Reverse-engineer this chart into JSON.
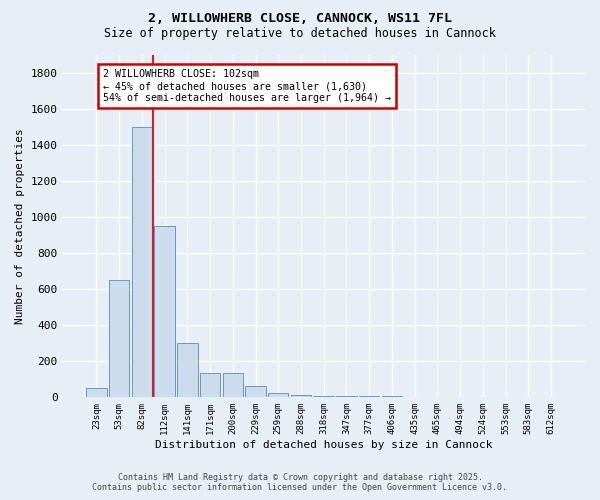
{
  "title1": "2, WILLOWHERB CLOSE, CANNOCK, WS11 7FL",
  "title2": "Size of property relative to detached houses in Cannock",
  "xlabel": "Distribution of detached houses by size in Cannock",
  "ylabel": "Number of detached properties",
  "bar_labels": [
    "23sqm",
    "53sqm",
    "82sqm",
    "112sqm",
    "141sqm",
    "171sqm",
    "200sqm",
    "229sqm",
    "259sqm",
    "288sqm",
    "318sqm",
    "347sqm",
    "377sqm",
    "406sqm",
    "435sqm",
    "465sqm",
    "494sqm",
    "524sqm",
    "553sqm",
    "583sqm",
    "612sqm"
  ],
  "bar_values": [
    50,
    650,
    1500,
    950,
    300,
    135,
    135,
    65,
    25,
    15,
    5,
    5,
    5,
    5,
    3,
    3,
    3,
    3,
    3,
    3,
    3
  ],
  "bar_color": "#cddcec",
  "bar_edge_color": "#6699bb",
  "red_line_x": 2.5,
  "annotation_text": "2 WILLOWHERB CLOSE: 102sqm\n← 45% of detached houses are smaller (1,630)\n54% of semi-detached houses are larger (1,964) →",
  "annotation_box_color": "#ffffff",
  "annotation_edge_color": "#cc0000",
  "ylim": [
    0,
    1900
  ],
  "yticks": [
    0,
    200,
    400,
    600,
    800,
    1000,
    1200,
    1400,
    1600,
    1800
  ],
  "bg_color": "#e8eef5",
  "grid_color": "#ffffff",
  "footer1": "Contains HM Land Registry data © Crown copyright and database right 2025.",
  "footer2": "Contains public sector information licensed under the Open Government Licence v3.0."
}
